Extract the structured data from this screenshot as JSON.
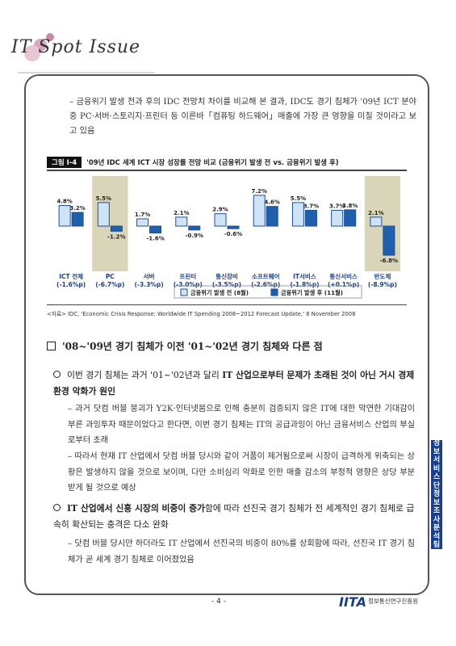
{
  "logo": {
    "text": "IT Spot Issue"
  },
  "intro": "– 금융위기 발생 전과 후의 IDC 전망치 차이를 비교해 본 결과, IDC도 경기 침체가 '09년 ICT 분야 중 PC·서버·스토리지·프린터 등 이른바「컴퓨팅 하드웨어」매출에 가장 큰 영향을 미칠 것이라고 보고 있음",
  "figure": {
    "label": "그림 Ⅰ-4",
    "title": "'09년 IDC 세계 ICT 시장 성장률 전망 비교 (금융위기 발생 전 vs. 금융위기 발생 후)"
  },
  "chart_data": {
    "type": "bar",
    "categories": [
      "ICT 전체",
      "PC",
      "서버",
      "프린터",
      "통신장비",
      "소프트웨어",
      "IT서비스",
      "통신서비스",
      "반도체"
    ],
    "category_sub": [
      "(-1.6%p)",
      "(-6.7%p)",
      "(-3.3%p)",
      "(-3.0%p)",
      "(-3.5%p)",
      "(-2.6%p)",
      "(-1.8%p)",
      "(+0.1%p)",
      "(-8.9%p)"
    ],
    "series": [
      {
        "name": "금융위기 발생 전 (8월)",
        "values": [
          4.8,
          5.5,
          1.7,
          2.1,
          2.9,
          7.2,
          5.5,
          3.7,
          2.1
        ],
        "labels": [
          "4.8%",
          "5.5%",
          "1.7%",
          "2.1%",
          "2.9%",
          "7.2%",
          "5.5%",
          "3.7%",
          "2.1%"
        ],
        "color": "#cfe3f7"
      },
      {
        "name": "금융위기 발생 후 (11월)",
        "values": [
          3.2,
          -1.2,
          -1.6,
          -0.9,
          -0.6,
          4.6,
          3.7,
          3.8,
          -6.8
        ],
        "labels": [
          "3.2%",
          "-1.2%",
          "-1.6%",
          "-0.9%",
          "-0.6%",
          "4.6%",
          "3.7%",
          "3.8%",
          "-6.8%"
        ],
        "color": "#1f5fae"
      }
    ],
    "highlight_categories": [
      "PC",
      "반도체"
    ],
    "highlight_color": "#d9d5b8",
    "ylim": [
      -7,
      8
    ]
  },
  "source": "<자료> IDC, 'Economic Crisis Response: Worldwide IT Spending 2008~2012 Forecast Update,' 8 November 2008",
  "heading": "'08~'09년 경기 침체가 이전 '01~'02년 경기 침체와 다른 점",
  "point1": {
    "pre": "이번 경기 침체는 과거 '01~'02년과 달리 ",
    "bold": "IT 산업으로부터 문제가 초래된 것이 아닌 거시 경제 환경 악화가 원인"
  },
  "dash1": "– 과거 닷컴 버블 붕괴가 Y2K·인터넷붐으로 인해 충분히 검증되지 않은 IT에 대한 막연한 기대감이 부른 과잉투자 때문이었다고 한다면, 이번 경기 침체는 IT의 공급과잉이 아닌 금융서비스 산업의 부실로부터 초래",
  "dash2": "– 따라서 현재 IT 산업에서 닷컴 버블 당시와 같이 거품이 제거됨으로써 시장이 급격하게 위축되는 상황은 발생하지 않을 것으로 보이며, 다만 소비심리 악화로 인한 매출 감소의 부정적 영향은 상당 부분 받게 될 것으로 예상",
  "point2": {
    "bold": "IT 산업에서 신흥 시장의 비중이 증가",
    "post": "함에 따라 선진국 경기 침체가 전 세계적인 경기 침체로 급속히 확산되는 충격은 다소 완화"
  },
  "dash3": "– 닷컴 버블 당시만 하더라도 IT 산업에서 선진국의 비중이 80%를 상회함에 따라, 선진국 IT 경기 침체가 곧 세계 경기 침체로 이어졌었음",
  "side_tab": "정보서비스단 정보조사분석팀",
  "page_number": "- 4 -",
  "footer": {
    "logo": "IITA",
    "org": "정보통신연구진흥원"
  }
}
